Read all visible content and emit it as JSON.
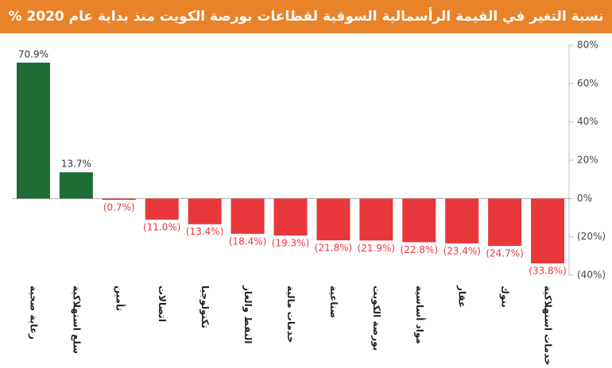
{
  "chart_data": {
    "type": "bar",
    "title": "نسبة التغير في القيمة الرأسمالية السوقية لقطاعات بورصة الكويت منذ بداية عام 2020 %",
    "categories": [
      "رعاية صحية",
      "سلع استهلاكية",
      "تأمين",
      "اتصالات",
      "تكنولوجيا",
      "النفط والغاز",
      "خدمات مالية",
      "صناعية",
      "بورصة الكويت",
      "مواد أساسية",
      "عقار",
      "بنوك",
      "خدمات استهلاكية"
    ],
    "values": [
      70.9,
      13.7,
      -0.7,
      -11.0,
      -13.4,
      -18.4,
      -19.3,
      -21.8,
      -21.9,
      -22.8,
      -23.4,
      -24.7,
      -33.8
    ],
    "value_labels": [
      "70.9%",
      "13.7%",
      "(0.7%)",
      "(11.0%)",
      "(13.4%)",
      "(18.4%)",
      "(19.3%)",
      "(21.8%)",
      "(21.9%)",
      "(22.8%)",
      "(23.4%)",
      "(24.7%)",
      "(33.8%)"
    ],
    "positive_color": "#1f6b34",
    "negative_color": "#e8383b",
    "ylim": [
      -40,
      80
    ],
    "yticks": [
      {
        "value": 80,
        "label": "80%"
      },
      {
        "value": 60,
        "label": "60%"
      },
      {
        "value": 40,
        "label": "40%"
      },
      {
        "value": 20,
        "label": "20%"
      },
      {
        "value": 0,
        "label": "0%"
      },
      {
        "value": -20,
        "label": "(20%)"
      },
      {
        "value": -40,
        "label": "(40%)"
      }
    ],
    "y_axis_side": "right"
  }
}
